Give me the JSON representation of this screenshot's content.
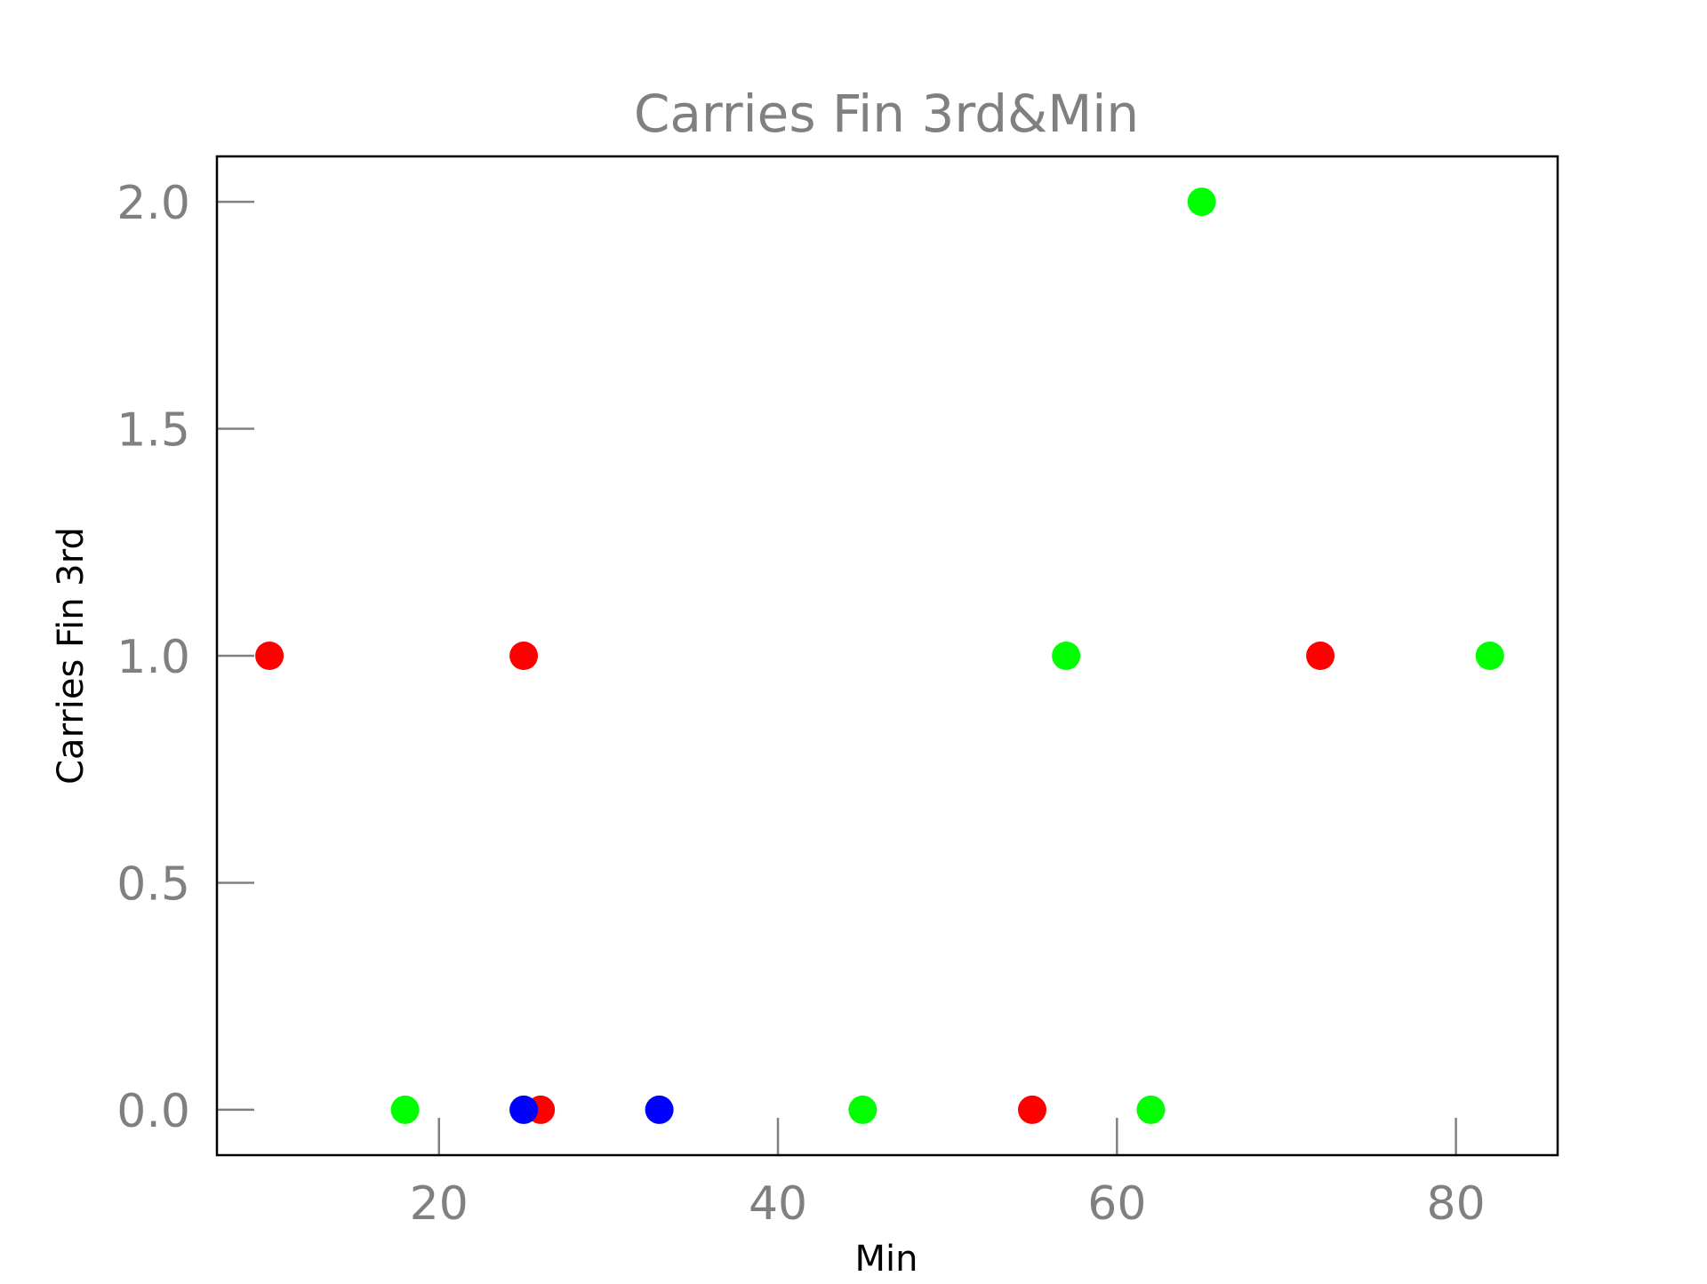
{
  "chart_data": {
    "type": "scatter",
    "title": "Carries Fin 3rd&Min",
    "xlabel": "Min",
    "ylabel": "Carries Fin 3rd",
    "xlim": [
      6.9,
      86.0
    ],
    "ylim": [
      -0.1,
      2.1
    ],
    "xticks": [
      20,
      40,
      60,
      80
    ],
    "xtick_labels": [
      "20",
      "40",
      "60",
      "80"
    ],
    "yticks": [
      0.0,
      0.5,
      1.0,
      1.5,
      2.0
    ],
    "ytick_labels": [
      "0.0",
      "0.5",
      "1.0",
      "1.5",
      "2.0"
    ],
    "grid": false,
    "colors": {
      "red": "#ff0000",
      "green": "#00ff00",
      "blue": "#0000ff"
    },
    "points": [
      {
        "x": 10,
        "y": 1,
        "color": "#ff0000"
      },
      {
        "x": 25,
        "y": 1,
        "color": "#ff0000"
      },
      {
        "x": 26,
        "y": 0,
        "color": "#ff0000"
      },
      {
        "x": 55,
        "y": 0,
        "color": "#ff0000"
      },
      {
        "x": 72,
        "y": 1,
        "color": "#ff0000"
      },
      {
        "x": 18,
        "y": 0,
        "color": "#00ff00"
      },
      {
        "x": 45,
        "y": 0,
        "color": "#00ff00"
      },
      {
        "x": 57,
        "y": 1,
        "color": "#00ff00"
      },
      {
        "x": 62,
        "y": 0,
        "color": "#00ff00"
      },
      {
        "x": 65,
        "y": 2,
        "color": "#00ff00"
      },
      {
        "x": 82,
        "y": 1,
        "color": "#00ff00"
      },
      {
        "x": 25,
        "y": 0,
        "color": "#0000ff"
      },
      {
        "x": 33,
        "y": 0,
        "color": "#0000ff"
      }
    ]
  }
}
